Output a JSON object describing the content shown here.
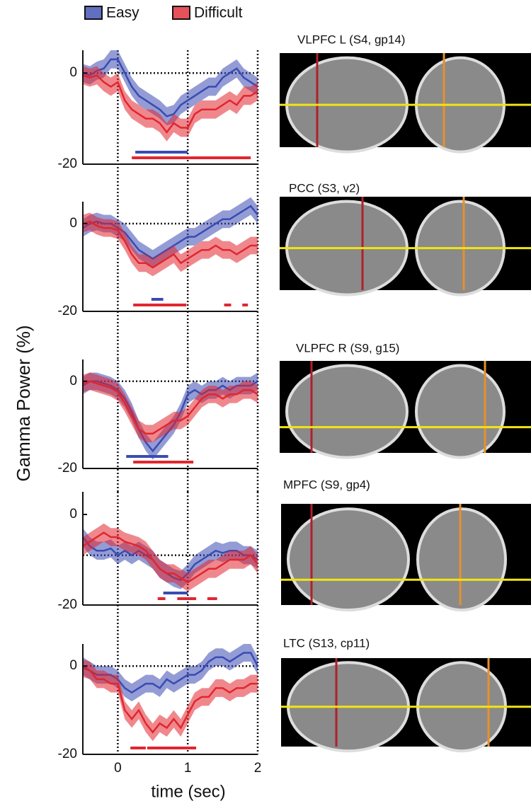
{
  "figure": {
    "ylabel": "Gamma Power (%)",
    "xlabel": "time (sec)"
  },
  "chart_data": [
    {
      "type": "line",
      "title": "VLPFC L (S4, gp14)",
      "x": [
        -0.5,
        -0.4,
        -0.3,
        -0.2,
        -0.1,
        0,
        0.1,
        0.2,
        0.3,
        0.4,
        0.5,
        0.6,
        0.7,
        0.8,
        0.9,
        1.0,
        1.1,
        1.2,
        1.3,
        1.4,
        1.5,
        1.6,
        1.7,
        1.8,
        1.9,
        2.0
      ],
      "xlim": [
        -0.5,
        2
      ],
      "xticks": [
        0,
        1,
        2
      ],
      "ylim": [
        -20,
        5
      ],
      "yticks": [
        -20,
        0
      ],
      "hline": 0,
      "grid": true,
      "series": [
        {
          "name": "Easy",
          "color": "#3a4bb2",
          "error": 2,
          "values": [
            0,
            -0.5,
            0.5,
            1,
            3,
            3,
            0,
            -3,
            -5,
            -6,
            -7,
            -8,
            -9.5,
            -9,
            -7,
            -6,
            -5,
            -4,
            -3,
            -3,
            -1,
            0,
            1,
            -1,
            -2,
            -3
          ],
          "significance": [
            [
              0.25,
              1.0
            ]
          ]
        },
        {
          "name": "Difficult",
          "color": "#e1262f",
          "error": 2,
          "values": [
            -0.5,
            -1,
            -0.5,
            -2,
            -3,
            -2,
            -6,
            -8,
            -9,
            -10,
            -10,
            -11,
            -13,
            -11,
            -12,
            -12,
            -9,
            -8,
            -8,
            -8,
            -7,
            -6,
            -7,
            -5,
            -5,
            -4
          ],
          "significance": [
            [
              0.2,
              1.9
            ]
          ]
        }
      ]
    },
    {
      "type": "line",
      "title": "PCC (S3, v2)",
      "x": [
        -0.5,
        -0.4,
        -0.3,
        -0.2,
        -0.1,
        0,
        0.1,
        0.2,
        0.3,
        0.4,
        0.5,
        0.6,
        0.7,
        0.8,
        0.9,
        1.0,
        1.1,
        1.2,
        1.3,
        1.4,
        1.5,
        1.6,
        1.7,
        1.8,
        1.9,
        2.0
      ],
      "xlim": [
        -0.5,
        2
      ],
      "xticks": [
        0,
        1,
        2
      ],
      "ylim": [
        -20,
        5
      ],
      "yticks": [
        -20,
        0
      ],
      "hline": 0,
      "grid": true,
      "series": [
        {
          "name": "Easy",
          "color": "#3a4bb2",
          "error": 2,
          "values": [
            -1,
            0,
            0.5,
            0,
            0,
            -1,
            -2,
            -4,
            -6,
            -7,
            -8,
            -7,
            -6,
            -5,
            -4,
            -3,
            -3,
            -2,
            -1,
            0,
            1,
            1,
            2,
            3,
            4,
            2
          ],
          "significance": [
            [
              0.48,
              0.65
            ]
          ]
        },
        {
          "name": "Difficult",
          "color": "#e1262f",
          "error": 2,
          "values": [
            0,
            0.5,
            -0.5,
            -1,
            -1,
            -1.5,
            -4,
            -7,
            -9,
            -9,
            -10,
            -9,
            -8,
            -7,
            -9,
            -8,
            -7,
            -6,
            -6,
            -5,
            -6,
            -6,
            -7,
            -6,
            -5,
            -5
          ],
          "significance": [
            [
              0.22,
              0.98
            ],
            [
              1.52,
              1.62
            ],
            [
              1.78,
              1.86
            ]
          ]
        }
      ]
    },
    {
      "type": "line",
      "title": "VLPFC R (S9, g15)",
      "x": [
        -0.5,
        -0.4,
        -0.3,
        -0.2,
        -0.1,
        0,
        0.1,
        0.2,
        0.3,
        0.4,
        0.5,
        0.6,
        0.7,
        0.8,
        0.9,
        1.0,
        1.1,
        1.2,
        1.3,
        1.4,
        1.5,
        1.6,
        1.7,
        1.8,
        1.9,
        2.0
      ],
      "xlim": [
        -0.5,
        2
      ],
      "xticks": [
        0,
        1,
        2
      ],
      "ylim": [
        -20,
        5
      ],
      "yticks": [
        -20,
        0
      ],
      "hline": 0,
      "grid": true,
      "series": [
        {
          "name": "Easy",
          "color": "#3a4bb2",
          "error": 2,
          "values": [
            -1,
            0,
            0,
            -0.5,
            -1,
            -2,
            -4,
            -7,
            -11,
            -14,
            -16,
            -14,
            -12,
            -10,
            -7,
            -3,
            -2,
            -3,
            -2,
            -2,
            -1,
            -2,
            -1,
            -1,
            -1,
            0
          ],
          "significance": [
            [
              0.12,
              0.72
            ]
          ]
        },
        {
          "name": "Difficult",
          "color": "#e1262f",
          "error": 2,
          "values": [
            -0.5,
            0,
            -0.5,
            -1,
            -1.5,
            -2.5,
            -5,
            -8,
            -11,
            -12,
            -12,
            -11,
            -10,
            -9,
            -9,
            -8,
            -6,
            -4,
            -3,
            -3,
            -4,
            -3,
            -3,
            -2,
            -2,
            -3
          ],
          "significance": [
            [
              0.22,
              1.08
            ]
          ]
        }
      ]
    },
    {
      "type": "line",
      "title": "MPFC (S9, gp4)",
      "x": [
        -0.5,
        -0.4,
        -0.3,
        -0.2,
        -0.1,
        0,
        0.1,
        0.2,
        0.3,
        0.4,
        0.5,
        0.6,
        0.7,
        0.8,
        0.9,
        1.0,
        1.1,
        1.2,
        1.3,
        1.4,
        1.5,
        1.6,
        1.7,
        1.8,
        1.9,
        2.0
      ],
      "xlim": [
        -0.5,
        2
      ],
      "xticks": [
        0,
        1,
        2
      ],
      "ylim": [
        -20,
        5
      ],
      "yticks": [
        -20,
        0
      ],
      "hline": -9,
      "grid": true,
      "series": [
        {
          "name": "Easy",
          "color": "#3a4bb2",
          "error": 2,
          "values": [
            -5,
            -7,
            -8,
            -8,
            -7.5,
            -9,
            -8,
            -9,
            -8,
            -9,
            -10,
            -12,
            -13,
            -14,
            -14.5,
            -13,
            -11,
            -10,
            -9,
            -8,
            -8.5,
            -8,
            -8,
            -9,
            -9,
            -10
          ],
          "significance": [
            [
              0.65,
              1.0
            ]
          ]
        },
        {
          "name": "Difficult",
          "color": "#e1262f",
          "error": 2,
          "values": [
            -7,
            -6,
            -5,
            -4,
            -5,
            -5,
            -6,
            -6.5,
            -7,
            -8,
            -10,
            -12,
            -13,
            -13,
            -14,
            -15,
            -14,
            -13,
            -12,
            -12,
            -11,
            -10,
            -10,
            -10,
            -9,
            -11
          ],
          "significance": [
            [
              0.57,
              0.68
            ],
            [
              0.85,
              1.12
            ],
            [
              1.28,
              1.42
            ]
          ]
        }
      ]
    },
    {
      "type": "line",
      "title": "LTC (S13, cp11)",
      "x": [
        -0.5,
        -0.4,
        -0.3,
        -0.2,
        -0.1,
        0,
        0.1,
        0.2,
        0.3,
        0.4,
        0.5,
        0.6,
        0.7,
        0.8,
        0.9,
        1.0,
        1.1,
        1.2,
        1.3,
        1.4,
        1.5,
        1.6,
        1.7,
        1.8,
        1.9,
        2.0
      ],
      "xlim": [
        -0.5,
        2
      ],
      "xticks": [
        0,
        1,
        2
      ],
      "ylim": [
        -20,
        5
      ],
      "yticks": [
        -20,
        0
      ],
      "hline": 0,
      "grid": true,
      "series": [
        {
          "name": "Easy",
          "color": "#3a4bb2",
          "error": 2,
          "values": [
            0,
            -1,
            -2,
            -2,
            -2,
            -3,
            -5,
            -6,
            -5,
            -4,
            -4,
            -5,
            -3,
            -4,
            -3,
            -2,
            -2,
            -1,
            1,
            2,
            2,
            1,
            2,
            3,
            3,
            0
          ],
          "significance": []
        },
        {
          "name": "Difficult",
          "color": "#e1262f",
          "error": 2,
          "values": [
            -0.5,
            -1,
            -3,
            -3,
            -4,
            -4,
            -10,
            -12,
            -10,
            -13,
            -15,
            -13,
            -14,
            -12,
            -14,
            -11,
            -8,
            -7,
            -7,
            -5,
            -5,
            -6,
            -5,
            -5,
            -4,
            -4
          ],
          "significance": [
            [
              0.18,
              0.4
            ],
            [
              0.42,
              1.12
            ]
          ]
        }
      ]
    }
  ]
}
